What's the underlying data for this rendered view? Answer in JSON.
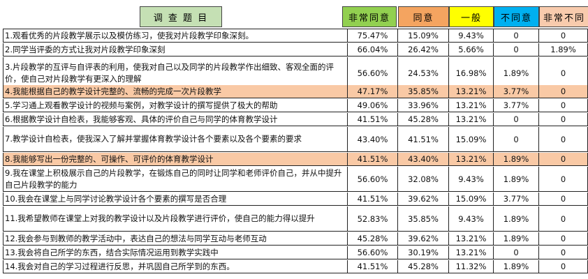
{
  "headers": {
    "topic": "调 查 题 目",
    "c1": "非常同意",
    "c2": "同意",
    "c3": "一般",
    "c4": "不同意",
    "c5": "非常不同"
  },
  "header_colors": {
    "topic": "#c5e0b4",
    "c1": "#92d050",
    "c2": "#f4a460",
    "c3": "#ffff00",
    "c4": "#00b0f0",
    "c5": "#f8cbad"
  },
  "highlight_color": "#f9c9a5",
  "rows": [
    {
      "q": "1.观看优秀的片段教学展示以及模仿练习，使我对片段教学印象深刻。",
      "v": [
        "75.47%",
        "15.09%",
        "9.43%",
        "0",
        "0"
      ]
    },
    {
      "q": "2.同学当评委的方式让我对片段教学印象深刻",
      "v": [
        "66.04%",
        "26.42%",
        "5.66%",
        "0",
        "1.89%"
      ]
    },
    {
      "q": "3.片段教学的互评与自评表的利用，使我对自己以及同学的片段教学作出细致、客观全面的评价，使自己对片段教学有更深入的理解",
      "v": [
        "56.60%",
        "24.53%",
        "16.98%",
        "1.89%",
        "0"
      ]
    },
    {
      "q": "4.我能根据自己的教学设计完整的、流畅的完成一次片段教学",
      "v": [
        "47.17%",
        "35.85%",
        "13.21%",
        "3.77%",
        "0"
      ],
      "hl": true
    },
    {
      "q": "5.学习通上观看教学设计的视频与案例，对教学设计的撰写提供了极大的帮助",
      "v": [
        "49.06%",
        "33.96%",
        "13.21%",
        "3.77%",
        "0"
      ]
    },
    {
      "q": "6.根据教学设计自检表，我能够客观、具体的评价自己与同学的体育教学设计",
      "v": [
        "41.51%",
        "45.28%",
        "13.21%",
        "0",
        "0"
      ]
    },
    {
      "q": "7.教学设计自检表，使我深入了解并掌握体育教学设计各个要素以及各个要素的要求",
      "v": [
        "43.40%",
        "41.51%",
        "15.09%",
        "0",
        "0"
      ]
    },
    {
      "q": "8.我能够写出一份完整的、可操作、可评价的体育教学设计",
      "v": [
        "41.51%",
        "43.40%",
        "13.21%",
        "1.89%",
        "0"
      ],
      "hl": true
    },
    {
      "q": "9.我在课堂上积极展示自己的片段教学，在锻炼自己的同时让同学和老师评价自己，并从中提升自己片段教学的能力",
      "v": [
        "56.60%",
        "32.08%",
        "9.43%",
        "1.89%",
        "0"
      ]
    },
    {
      "q": "10.我会在课堂上与同学讨论教学设计各个要素的撰写是否合理",
      "v": [
        "41.51%",
        "39.62%",
        "15.09%",
        "3.77%",
        "0"
      ]
    },
    {
      "q": "11.我希望教师在课堂上对我的教学设计以及片段教学进行评价，使自己的能力得以提升",
      "v": [
        "52.83%",
        "35.85%",
        "9.43%",
        "1.89%",
        "0"
      ]
    },
    {
      "q": "12.我会参与到教师的教学活动中，表达自己的想法与同学互动与老师互动",
      "v": [
        "45.28%",
        "39.62%",
        "13.21%",
        "1.89%",
        "0"
      ]
    },
    {
      "q": "13.我会将自己所学的东西，结合实际情况运用到教学实践中",
      "v": [
        "56.60%",
        "30.19%",
        "13.21%",
        "0",
        "0"
      ]
    },
    {
      "q": "14.我会对自己的学习过程进行反思，并巩固自己所学到的东西。",
      "v": [
        "41.51%",
        "45.28%",
        "11.32%",
        "1.89%",
        "0"
      ]
    }
  ]
}
